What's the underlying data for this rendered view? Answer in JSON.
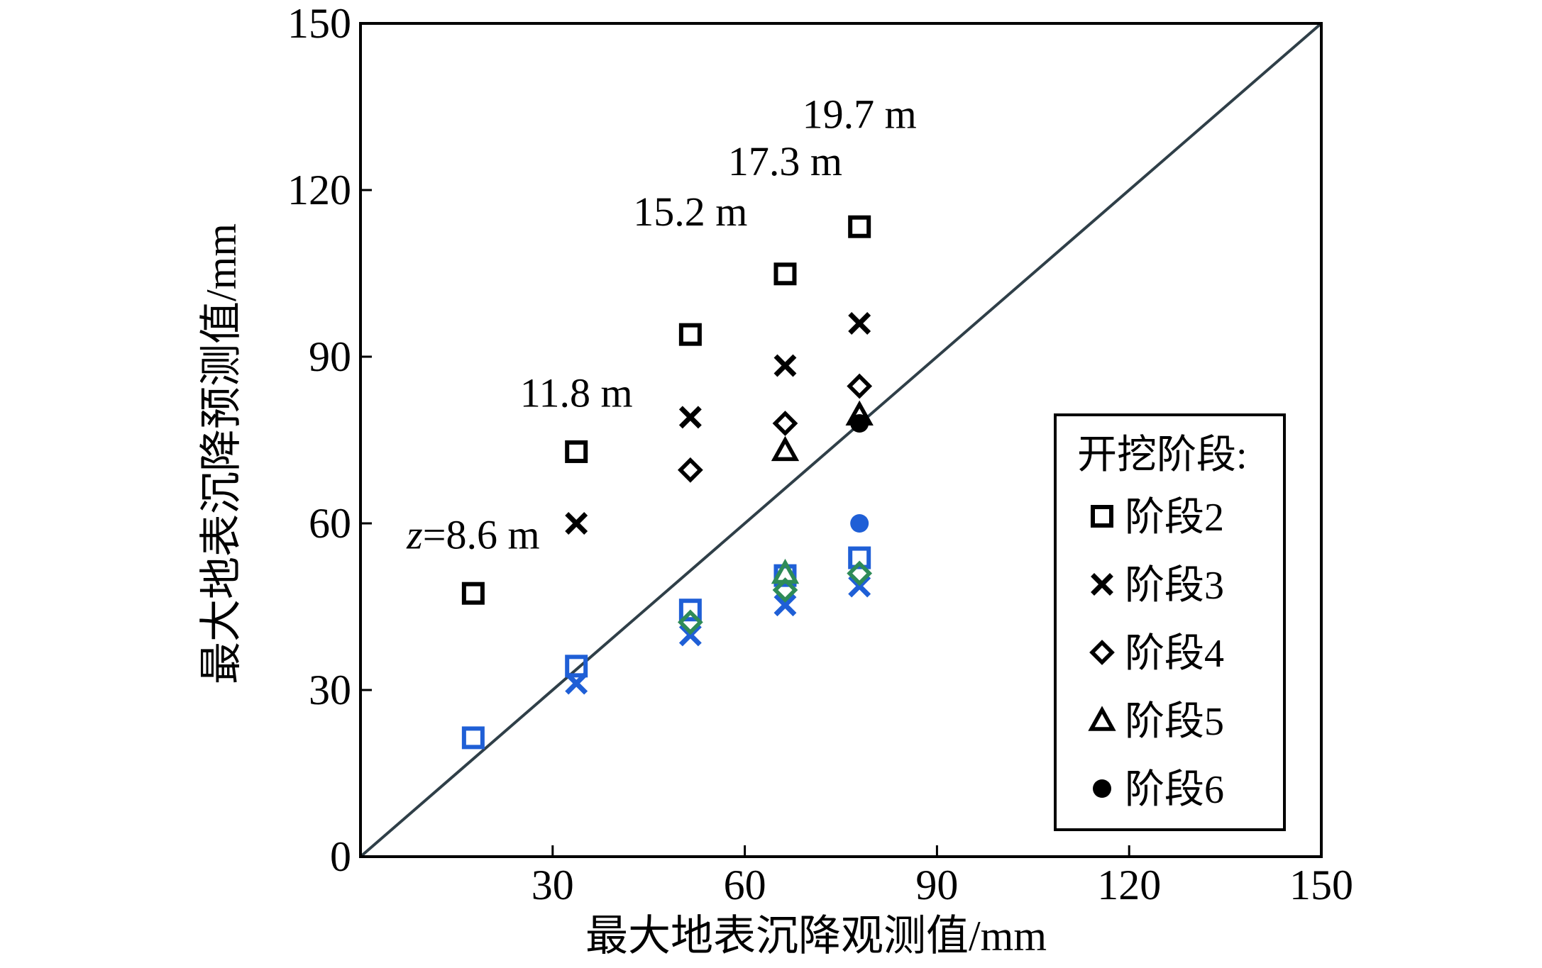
{
  "chart_data": {
    "type": "scatter",
    "title": "",
    "xlabel": "最大地表沉降观测值/mm",
    "ylabel": "最大地表沉降预测值/mm",
    "xlim": [
      0,
      150
    ],
    "ylim": [
      0,
      150
    ],
    "x_ticks": [
      30,
      60,
      90,
      120,
      150
    ],
    "y_ticks": [
      0,
      30,
      60,
      90,
      120,
      150
    ],
    "grid": false,
    "reference_line": {
      "from": [
        0,
        0
      ],
      "to": [
        150,
        150
      ],
      "color": "#2f3f48"
    },
    "legend": {
      "title": "开挖阶段:",
      "placement": "bottom-right",
      "entries": [
        {
          "label": "阶段2",
          "marker": "square"
        },
        {
          "label": "阶段3",
          "marker": "x"
        },
        {
          "label": "阶段4",
          "marker": "diamond"
        },
        {
          "label": "阶段5",
          "marker": "triangle"
        },
        {
          "label": "阶段6",
          "marker": "circle"
        }
      ]
    },
    "series": [
      {
        "name": "阶段2",
        "marker": "square",
        "color": "#000000",
        "x": [
          17.6,
          33.7,
          51.5,
          66.3,
          77.9
        ],
        "y": [
          47.4,
          72.9,
          94.0,
          104.9,
          113.4
        ]
      },
      {
        "name": "阶段3",
        "marker": "x",
        "color": "#000000",
        "x": [
          33.7,
          51.5,
          66.3,
          77.9
        ],
        "y": [
          60.0,
          79.1,
          88.4,
          96.0
        ]
      },
      {
        "name": "阶段4",
        "marker": "diamond",
        "color": "#000000",
        "x": [
          51.5,
          66.3,
          77.9
        ],
        "y": [
          69.6,
          78.0,
          84.7
        ]
      },
      {
        "name": "阶段5",
        "marker": "triangle",
        "color": "#000000",
        "x": [
          66.3,
          77.9
        ],
        "y": [
          73.1,
          79.5
        ]
      },
      {
        "name": "阶段6",
        "marker": "circle",
        "color": "#000000",
        "x": [
          77.9
        ],
        "y": [
          78.0
        ]
      }
    ],
    "overlay_points": [
      {
        "marker": "square",
        "color": "#1f5fd6",
        "x": 17.6,
        "y": 21.4
      },
      {
        "marker": "square",
        "color": "#1f5fd6",
        "x": 33.7,
        "y": 34.3
      },
      {
        "marker": "x",
        "color": "#1f5fd6",
        "x": 33.7,
        "y": 31.2
      },
      {
        "marker": "square",
        "color": "#1f5fd6",
        "x": 51.5,
        "y": 44.4
      },
      {
        "marker": "x",
        "color": "#1f5fd6",
        "x": 51.5,
        "y": 39.9
      },
      {
        "marker": "diamond",
        "color": "#2e8b57",
        "x": 51.5,
        "y": 42.2
      },
      {
        "marker": "square",
        "color": "#1f5fd6",
        "x": 66.3,
        "y": 50.6
      },
      {
        "marker": "x",
        "color": "#1f5fd6",
        "x": 66.3,
        "y": 45.3
      },
      {
        "marker": "diamond",
        "color": "#2e8b57",
        "x": 66.3,
        "y": 48.0
      },
      {
        "marker": "triangle",
        "color": "#2e8b57",
        "x": 66.3,
        "y": 51.0
      },
      {
        "marker": "circle",
        "color": "#1f5fd6",
        "x": 77.9,
        "y": 60.0
      },
      {
        "marker": "square",
        "color": "#1f5fd6",
        "x": 77.9,
        "y": 53.8
      },
      {
        "marker": "x",
        "color": "#1f5fd6",
        "x": 77.9,
        "y": 48.7
      },
      {
        "marker": "diamond",
        "color": "#2e8b57",
        "x": 77.9,
        "y": 51.0
      }
    ],
    "annotations": [
      {
        "prefix": "z",
        "text": "=8.6 m",
        "x": 17.6,
        "y": 55.5
      },
      {
        "prefix": "",
        "text": "11.8 m",
        "x": 33.7,
        "y": 81.0
      },
      {
        "prefix": "",
        "text": "15.2 m",
        "x": 51.5,
        "y": 113.6
      },
      {
        "prefix": "",
        "text": "17.3 m",
        "x": 66.3,
        "y": 122.7
      },
      {
        "prefix": "",
        "text": "19.7 m",
        "x": 77.9,
        "y": 131.2
      }
    ]
  }
}
